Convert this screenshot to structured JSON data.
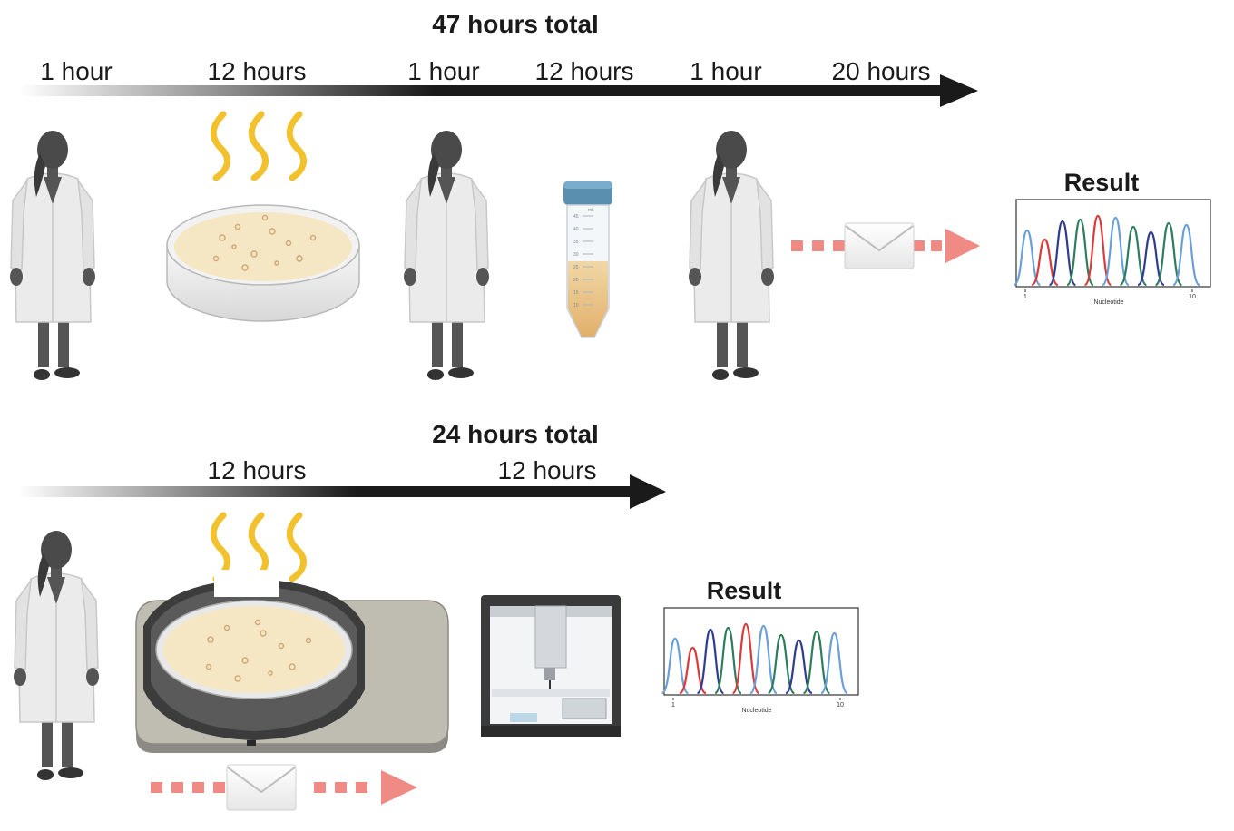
{
  "workflow_top": {
    "total_label": "47 hours total",
    "steps": [
      "1 hour",
      "12 hours",
      "1 hour",
      "12 hours",
      "1 hour",
      "20 hours"
    ],
    "result_label": "Result",
    "chromatogram": {
      "axis_label": "Nucleotide",
      "tick_start": "1",
      "tick_end": "10"
    },
    "tube_graduations": [
      "45",
      "40",
      "35",
      "30",
      "25",
      "20",
      "15",
      "10"
    ],
    "tube_unit": "mL"
  },
  "workflow_bottom": {
    "total_label": "24 hours total",
    "steps": [
      "12 hours",
      "12 hours"
    ],
    "result_label": "Result",
    "chromatogram": {
      "axis_label": "Nucleotide",
      "tick_start": "1",
      "tick_end": "10"
    }
  },
  "colors": {
    "arrow": "#1a1a1a",
    "mail_path": "#f08a84",
    "heat": "#f2c12e",
    "agar": "#f5e6c4",
    "lab_coat": "#ebebeb",
    "person": "#4a4a4a",
    "tube_cap": "#5b8fb0",
    "tube_liquid": "#e8c48a",
    "peak_colors": [
      "#6a9fd8",
      "#d93b3b",
      "#2f3c8f",
      "#2e7d5b",
      "#d93b3b",
      "#6a9fd8",
      "#2e7d5b",
      "#2f3c8f",
      "#2e7d5b",
      "#6a9fd8"
    ]
  },
  "icons": [
    "scientist-icon",
    "petri-dish-icon",
    "heat-waves-icon",
    "conical-tube-icon",
    "envelope-icon",
    "incubator-device-icon",
    "liquid-handler-icon",
    "chromatogram-icon"
  ]
}
